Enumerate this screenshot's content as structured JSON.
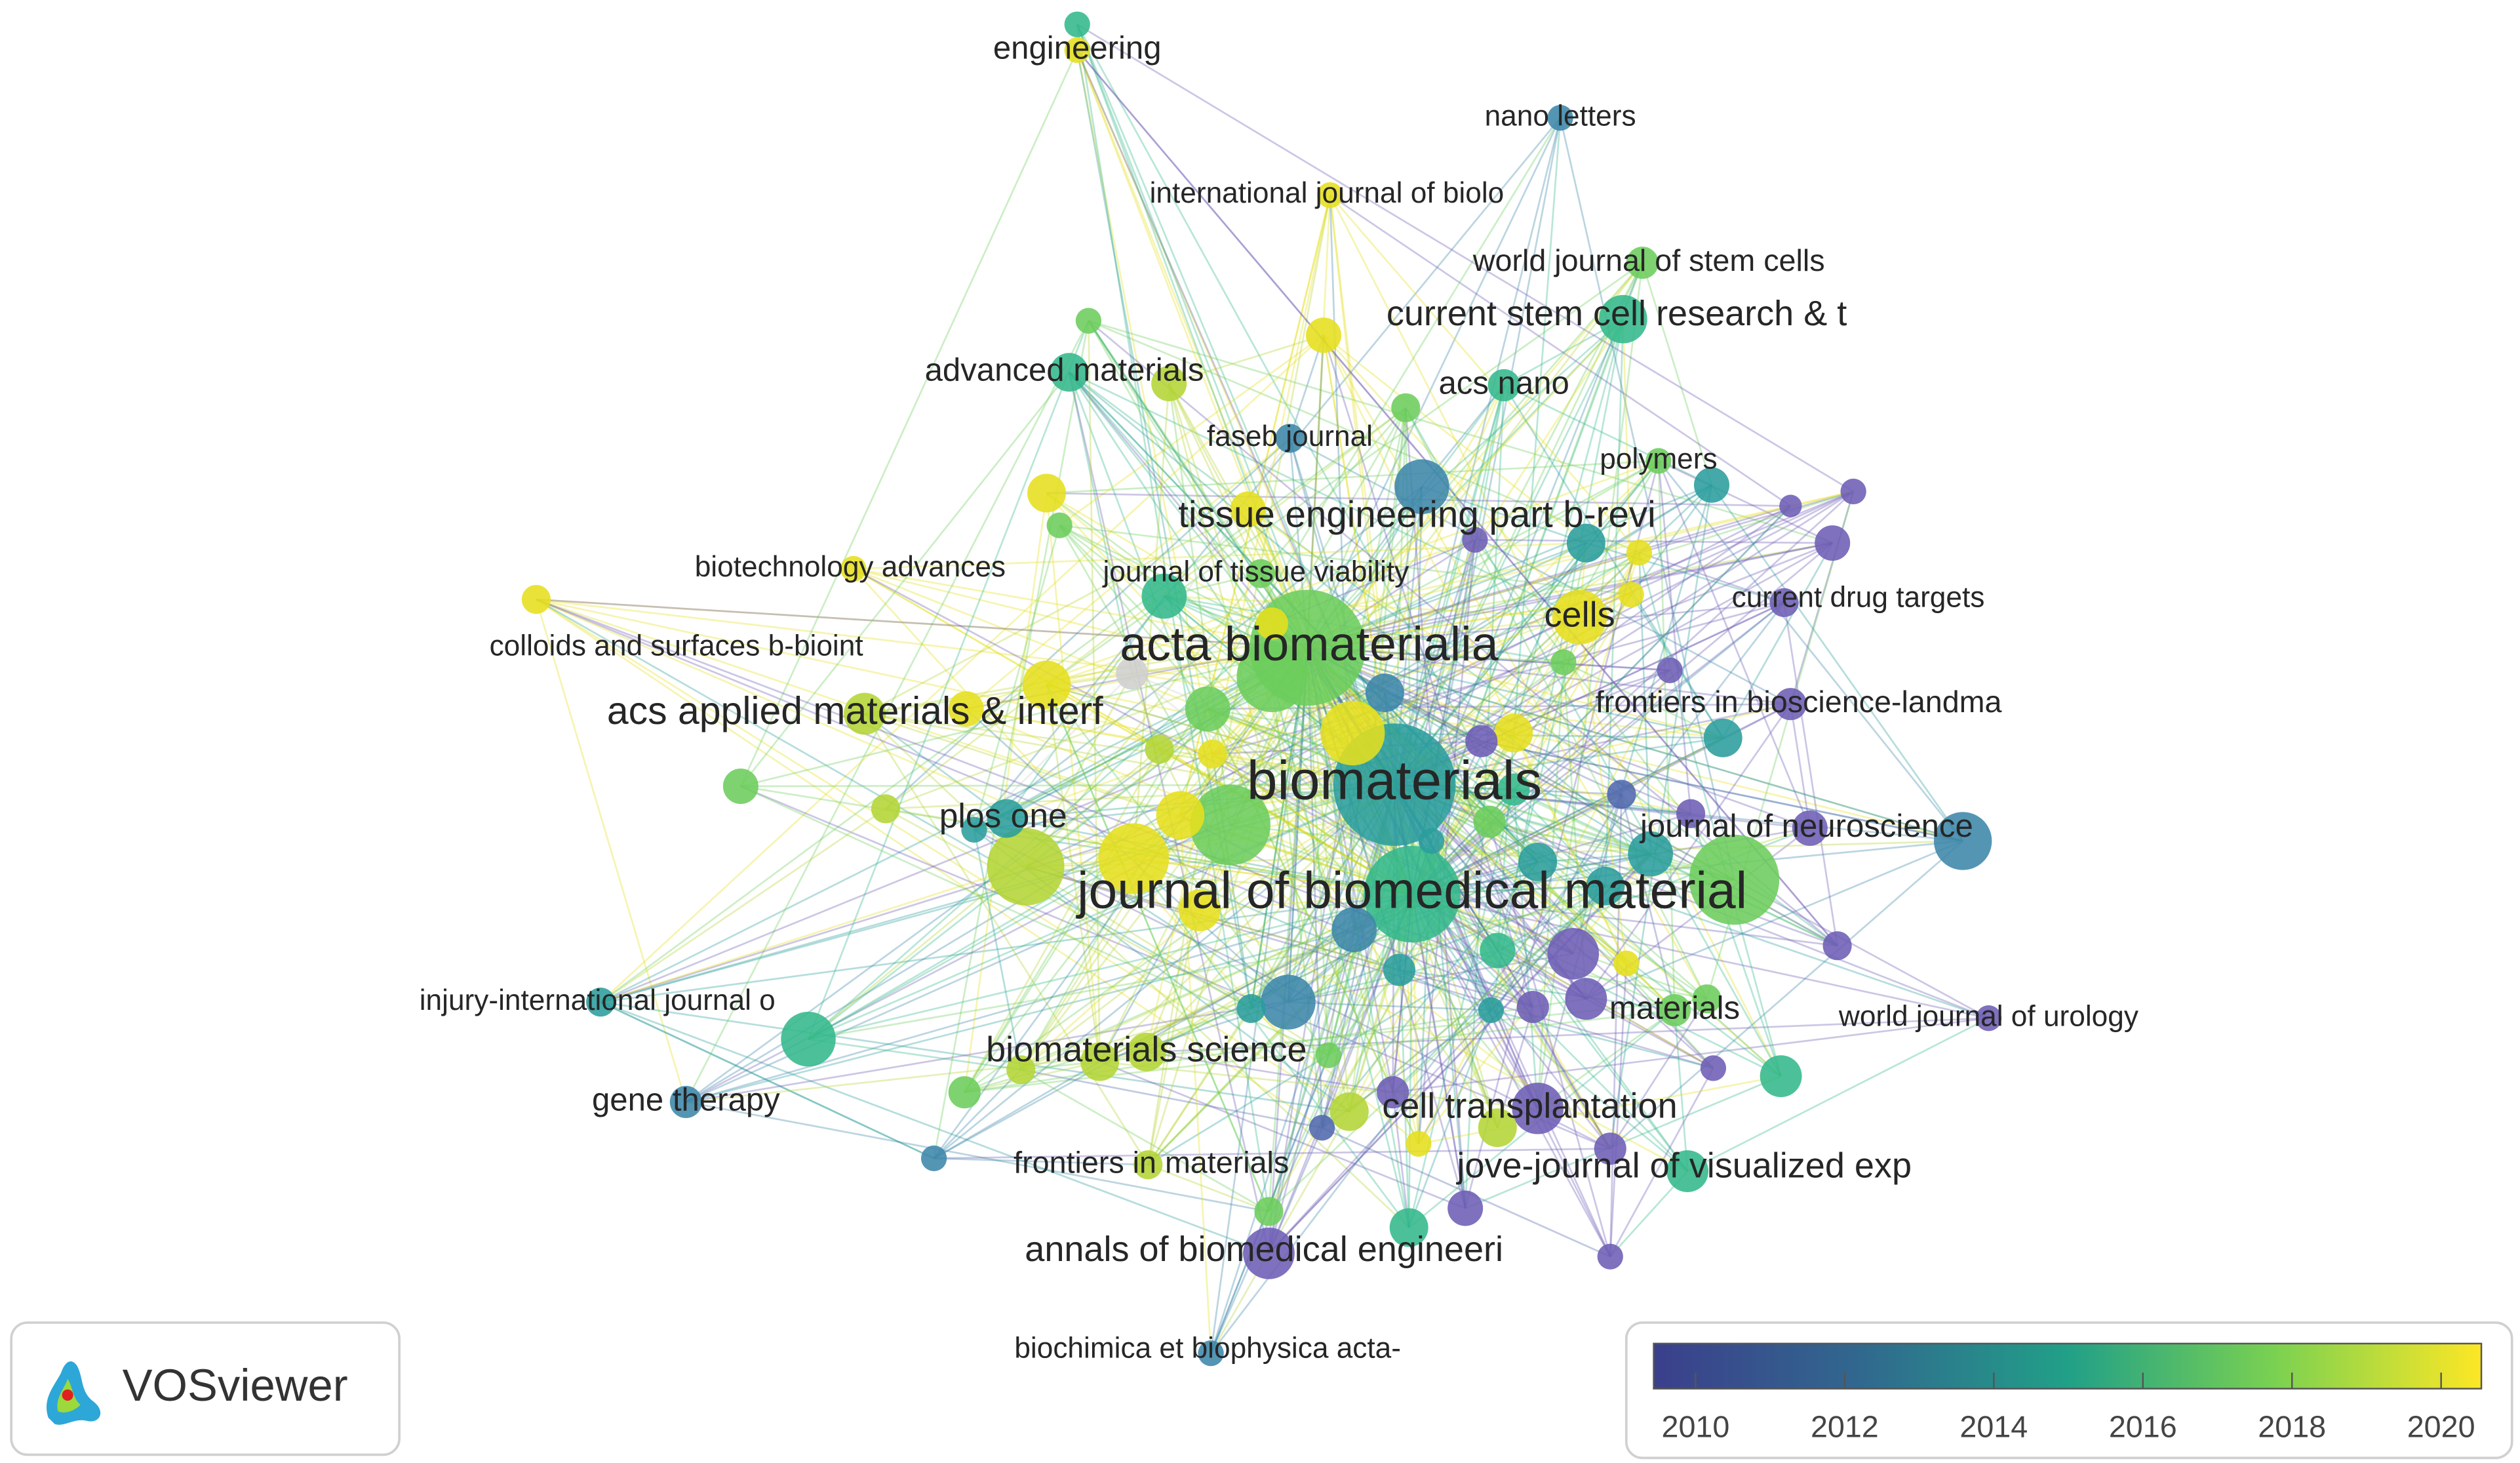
{
  "nodes": [
    {
      "label": "engineering"
    },
    {
      "label": "nano letters"
    },
    {
      "label": "international journal of biolo"
    },
    {
      "label": "world journal of stem cells"
    },
    {
      "label": "current stem cell research & t"
    },
    {
      "label": "advanced materials"
    },
    {
      "label": "acs nano"
    },
    {
      "label": "faseb journal"
    },
    {
      "label": "polymers"
    },
    {
      "label": "tissue engineering part b-revi"
    },
    {
      "label": "biotechnology advances"
    },
    {
      "label": "journal of tissue viability"
    },
    {
      "label": "current drug targets"
    },
    {
      "label": "cells"
    },
    {
      "label": "colloids and surfaces b-bioint"
    },
    {
      "label": "acta biomaterialia"
    },
    {
      "label": "acs applied materials & interf"
    },
    {
      "label": "frontiers in bioscience-landma"
    },
    {
      "label": "biomaterials"
    },
    {
      "label": "journal of neuroscience"
    },
    {
      "label": "plos one"
    },
    {
      "label": "journal of biomedical material"
    },
    {
      "label": "injury-international journal o"
    },
    {
      "label": "materials"
    },
    {
      "label": "world journal of urology"
    },
    {
      "label": "biomaterials science"
    },
    {
      "label": "gene therapy"
    },
    {
      "label": "cell transplantation"
    },
    {
      "label": "frontiers in materials"
    },
    {
      "label": "jove-journal of visualized exp"
    },
    {
      "label": "annals of biomedical engineeri"
    },
    {
      "label": "biochimica et biophysica acta-"
    }
  ],
  "legend": {
    "ticks": [
      2010,
      2012,
      2014,
      2016,
      2018,
      2020
    ]
  },
  "logo": {
    "text": "VOSviewer"
  }
}
